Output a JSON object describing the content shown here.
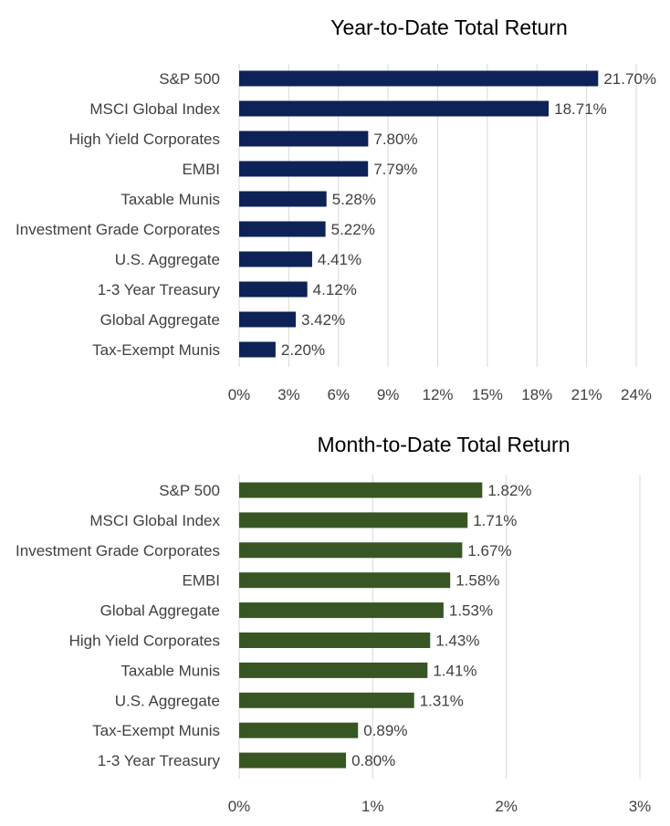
{
  "chart_data": [
    {
      "type": "bar",
      "orientation": "horizontal",
      "title": "Year-to-Date Total Return",
      "categories": [
        "S&P 500",
        "MSCI Global Index",
        "High Yield Corporates",
        "EMBI",
        "Taxable Munis",
        "Investment Grade Corporates",
        "U.S. Aggregate",
        "1-3 Year Treasury",
        "Global Aggregate",
        "Tax-Exempt Munis"
      ],
      "values": [
        21.7,
        18.71,
        7.8,
        7.79,
        5.28,
        5.22,
        4.41,
        4.12,
        3.42,
        2.2
      ],
      "value_labels": [
        "21.70%",
        "18.71%",
        "7.80%",
        "7.79%",
        "5.28%",
        "5.22%",
        "4.41%",
        "4.12%",
        "3.42%",
        "2.20%"
      ],
      "xlim": [
        0,
        24
      ],
      "ticks": [
        0,
        3,
        6,
        9,
        12,
        15,
        18,
        21,
        24
      ],
      "tick_labels": [
        "0%",
        "3%",
        "6%",
        "9%",
        "12%",
        "15%",
        "18%",
        "21%",
        "24%"
      ],
      "bar_color": "#0d2256",
      "grid": true
    },
    {
      "type": "bar",
      "orientation": "horizontal",
      "title": "Month-to-Date Total Return",
      "categories": [
        "S&P 500",
        "MSCI Global Index",
        "Investment Grade Corporates",
        "EMBI",
        "Global Aggregate",
        "High Yield Corporates",
        "Taxable Munis",
        "U.S. Aggregate",
        "Tax-Exempt Munis",
        "1-3 Year Treasury"
      ],
      "values": [
        1.82,
        1.71,
        1.67,
        1.58,
        1.53,
        1.43,
        1.41,
        1.31,
        0.89,
        0.8
      ],
      "value_labels": [
        "1.82%",
        "1.71%",
        "1.67%",
        "1.58%",
        "1.53%",
        "1.43%",
        "1.41%",
        "1.31%",
        "0.89%",
        "0.80%"
      ],
      "xlim": [
        0,
        3
      ],
      "ticks": [
        0,
        1,
        2,
        3
      ],
      "tick_labels": [
        "0%",
        "1%",
        "2%",
        "3%"
      ],
      "bar_color": "#375623",
      "grid": true
    }
  ]
}
